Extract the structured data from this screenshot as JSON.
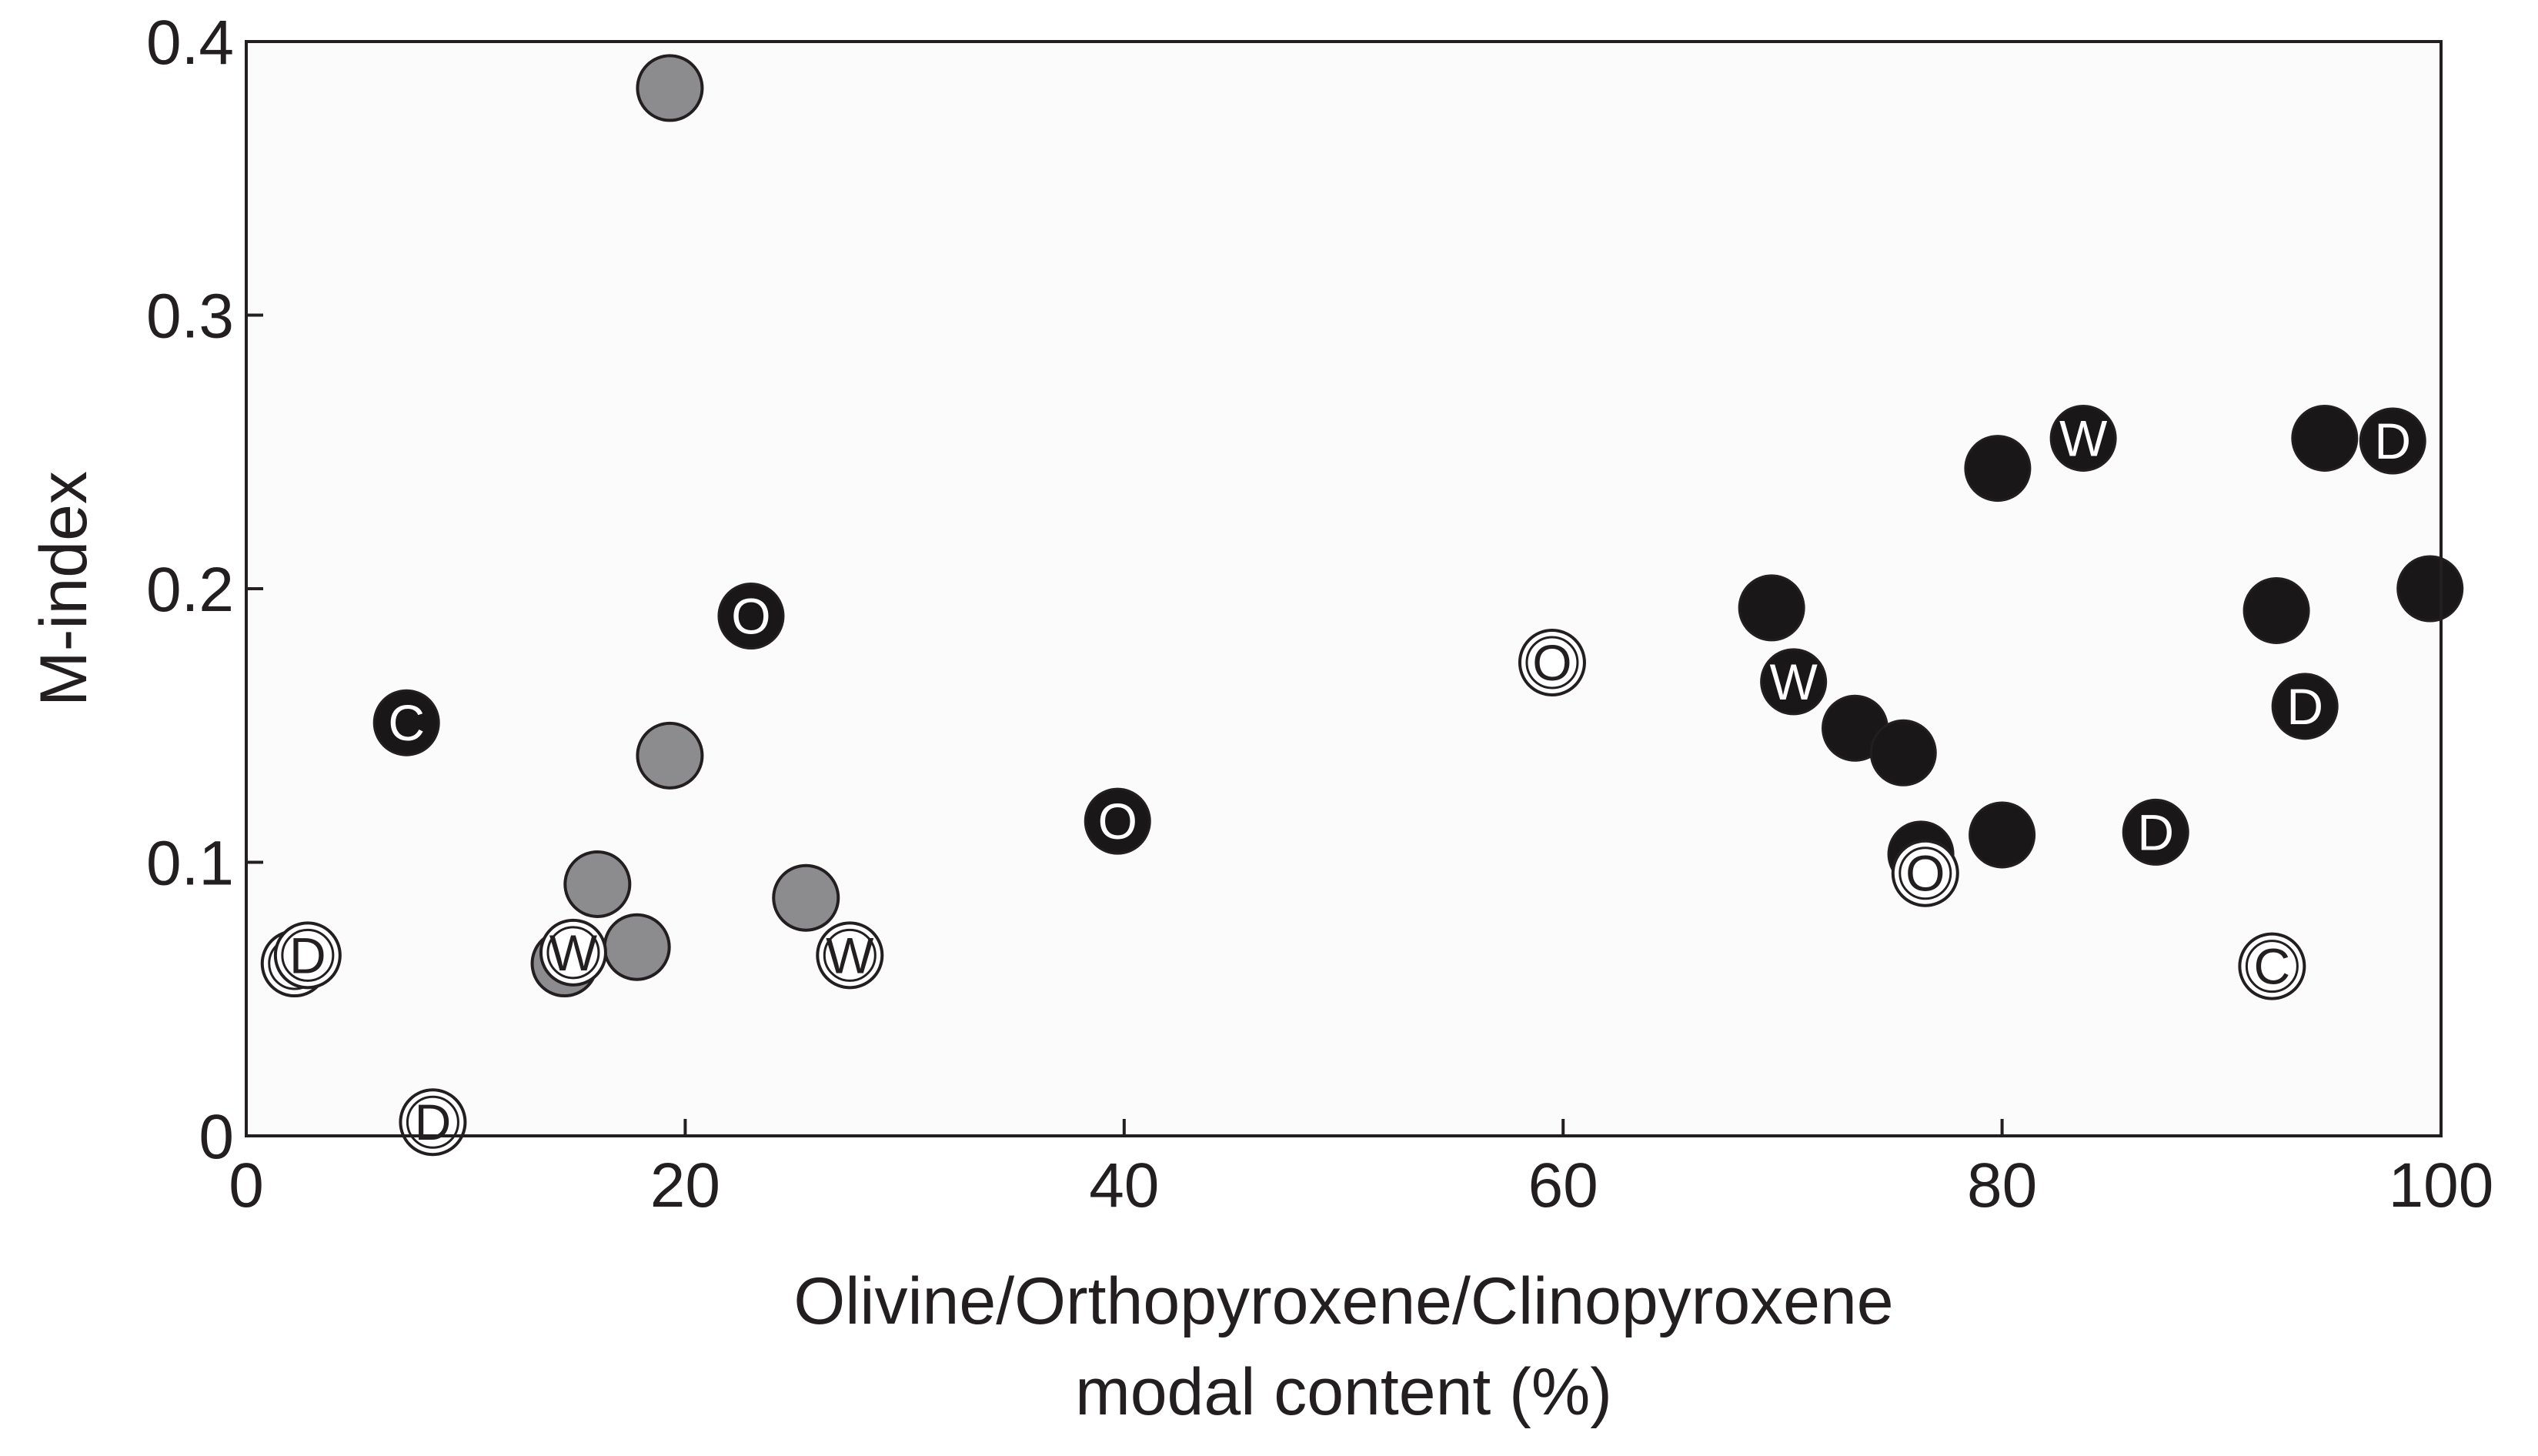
{
  "chart_data": {
    "type": "scatter",
    "title": "",
    "xlabel_lines": [
      "Olivine/Orthopyroxene/Clinopyroxene",
      "modal content (%)"
    ],
    "ylabel": "M-index",
    "xlim": [
      0,
      100
    ],
    "ylim": [
      0,
      0.4
    ],
    "x_ticks": [
      0,
      20,
      40,
      60,
      80,
      100
    ],
    "x_tick_labels": [
      "0",
      "20",
      "40",
      "60",
      "80",
      "100"
    ],
    "y_ticks": [
      0,
      0.1,
      0.2,
      0.3,
      0.4
    ],
    "y_tick_labels": [
      "0",
      "0.1",
      "0.2",
      "0.3",
      "0.4"
    ],
    "grid": false,
    "legend": "none",
    "colors": {
      "black": "#1a1718",
      "gray": "#8c8c8e",
      "white": "#ffffff",
      "edge": "#231f20",
      "plot_background": "#fbfbfb"
    },
    "points": [
      {
        "x": 2.2,
        "y": 0.063,
        "style": "white",
        "label": ""
      },
      {
        "x": 2.8,
        "y": 0.066,
        "style": "white",
        "label": "D"
      },
      {
        "x": 8.5,
        "y": 0.005,
        "style": "white",
        "label": "D"
      },
      {
        "x": 7.3,
        "y": 0.151,
        "style": "black",
        "label": "C"
      },
      {
        "x": 19.3,
        "y": 0.383,
        "style": "gray",
        "label": ""
      },
      {
        "x": 19.3,
        "y": 0.139,
        "style": "gray",
        "label": ""
      },
      {
        "x": 16.0,
        "y": 0.092,
        "style": "gray",
        "label": ""
      },
      {
        "x": 17.8,
        "y": 0.069,
        "style": "gray",
        "label": ""
      },
      {
        "x": 14.5,
        "y": 0.063,
        "style": "gray",
        "label": ""
      },
      {
        "x": 14.9,
        "y": 0.067,
        "style": "white",
        "label": "W"
      },
      {
        "x": 25.5,
        "y": 0.087,
        "style": "gray",
        "label": ""
      },
      {
        "x": 27.5,
        "y": 0.066,
        "style": "white",
        "label": "W"
      },
      {
        "x": 23.0,
        "y": 0.19,
        "style": "black",
        "label": "O"
      },
      {
        "x": 39.7,
        "y": 0.115,
        "style": "black",
        "label": "O"
      },
      {
        "x": 59.5,
        "y": 0.173,
        "style": "white",
        "label": "O"
      },
      {
        "x": 69.5,
        "y": 0.193,
        "style": "black",
        "label": ""
      },
      {
        "x": 70.5,
        "y": 0.166,
        "style": "black",
        "label": "W"
      },
      {
        "x": 73.3,
        "y": 0.149,
        "style": "black",
        "label": ""
      },
      {
        "x": 75.5,
        "y": 0.14,
        "style": "black",
        "label": ""
      },
      {
        "x": 76.3,
        "y": 0.103,
        "style": "black",
        "label": ""
      },
      {
        "x": 76.5,
        "y": 0.096,
        "style": "white",
        "label": "O"
      },
      {
        "x": 80.0,
        "y": 0.11,
        "style": "black",
        "label": ""
      },
      {
        "x": 79.8,
        "y": 0.244,
        "style": "black",
        "label": ""
      },
      {
        "x": 83.7,
        "y": 0.255,
        "style": "black",
        "label": "W"
      },
      {
        "x": 87.0,
        "y": 0.111,
        "style": "black",
        "label": "D"
      },
      {
        "x": 92.3,
        "y": 0.062,
        "style": "white",
        "label": "C"
      },
      {
        "x": 92.5,
        "y": 0.192,
        "style": "black",
        "label": ""
      },
      {
        "x": 93.8,
        "y": 0.157,
        "style": "black",
        "label": "D"
      },
      {
        "x": 94.7,
        "y": 0.255,
        "style": "black",
        "label": ""
      },
      {
        "x": 97.8,
        "y": 0.254,
        "style": "black",
        "label": "D"
      },
      {
        "x": 99.5,
        "y": 0.2,
        "style": "black",
        "label": ""
      }
    ]
  }
}
